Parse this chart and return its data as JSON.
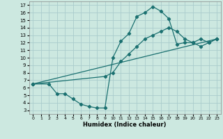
{
  "xlabel": "Humidex (Indice chaleur)",
  "xlim": [
    -0.5,
    23.5
  ],
  "ylim": [
    2.5,
    17.5
  ],
  "xticks": [
    0,
    1,
    2,
    3,
    4,
    5,
    6,
    7,
    8,
    9,
    10,
    11,
    12,
    13,
    14,
    15,
    16,
    17,
    18,
    19,
    20,
    21,
    22,
    23
  ],
  "yticks": [
    3,
    4,
    5,
    6,
    7,
    8,
    9,
    10,
    11,
    12,
    13,
    14,
    15,
    16,
    17
  ],
  "color": "#1a7070",
  "bg_color": "#cce8e0",
  "grid_color": "#aacccc",
  "curve1_x": [
    0,
    2,
    3,
    4,
    5,
    6,
    7,
    8,
    9,
    10,
    11,
    12,
    13,
    14,
    15,
    16,
    17,
    18,
    19,
    20,
    21,
    22,
    23
  ],
  "curve1_y": [
    6.5,
    6.5,
    5.2,
    5.2,
    4.5,
    3.8,
    3.5,
    3.3,
    3.3,
    10.0,
    12.2,
    13.2,
    15.5,
    16.0,
    16.8,
    16.2,
    15.2,
    11.8,
    12.0,
    12.0,
    12.5,
    12.0,
    12.5
  ],
  "curve2_x": [
    0,
    9,
    10,
    11,
    12,
    13,
    14,
    15,
    16,
    17,
    18,
    19,
    20,
    21,
    22,
    23
  ],
  "curve2_y": [
    6.5,
    7.5,
    8.0,
    9.5,
    10.5,
    11.5,
    12.5,
    13.0,
    13.5,
    14.0,
    13.5,
    12.5,
    12.0,
    11.5,
    12.0,
    12.5
  ],
  "curve3_x": [
    0,
    23
  ],
  "curve3_y": [
    6.5,
    12.5
  ]
}
